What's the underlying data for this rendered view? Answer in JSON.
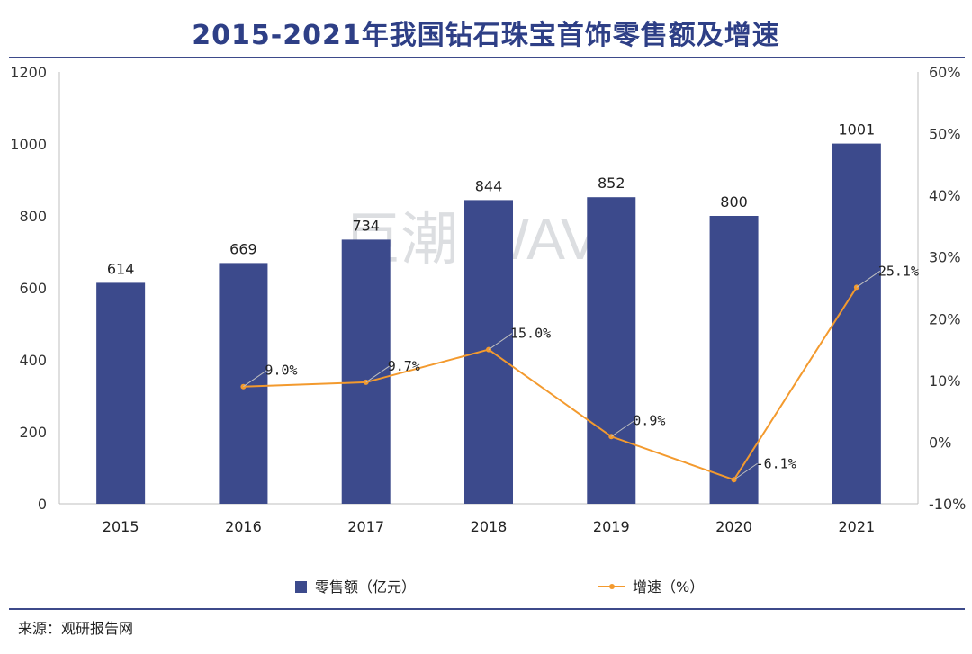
{
  "title": "2015-2021年我国钻石珠宝首饰零售额及增速",
  "source": "来源：观研报告网",
  "watermark": "巨潮  WAVE",
  "colors": {
    "bar": "#3c4a8c",
    "line": "#f39a2e",
    "title": "#2e3f86",
    "rule": "#3d4a8a"
  },
  "chart_data": {
    "type": "bar",
    "title": "2015-2021年我国钻石珠宝首饰零售额及增速",
    "categories": [
      "2015",
      "2016",
      "2017",
      "2018",
      "2019",
      "2020",
      "2021"
    ],
    "series": [
      {
        "name": "零售额（亿元）",
        "type": "bar",
        "axis": "left",
        "values": [
          614,
          669,
          734,
          844,
          852,
          800,
          1001
        ],
        "labels": [
          "614",
          "669",
          "734",
          "844",
          "852",
          "800",
          "1001"
        ]
      },
      {
        "name": "增速（%）",
        "type": "line",
        "axis": "right",
        "values": [
          null,
          9.0,
          9.7,
          15.0,
          0.9,
          -6.1,
          25.1
        ],
        "labels": [
          "",
          "9.0%",
          "9.7%",
          "15.0%",
          "0.9%",
          "-6.1%",
          "25.1%"
        ]
      }
    ],
    "y_left": {
      "range": [
        0,
        1200
      ],
      "ticks": [
        "0",
        "200",
        "400",
        "600",
        "800",
        "1000",
        "1200"
      ]
    },
    "y_right": {
      "range": [
        -10,
        60
      ],
      "ticks": [
        "-10%",
        "0%",
        "10%",
        "20%",
        "30%",
        "40%",
        "50%",
        "60%"
      ]
    },
    "legend": {
      "position": "bottom",
      "entries": [
        "零售额（亿元）",
        "增速（%）"
      ]
    },
    "grid": false
  }
}
